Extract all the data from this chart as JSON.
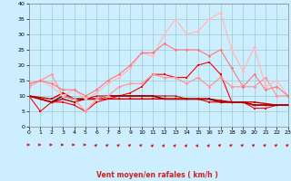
{
  "xlabel": "Vent moyen/en rafales ( km/h )",
  "xlim": [
    0,
    23
  ],
  "ylim": [
    0,
    40
  ],
  "yticks": [
    0,
    5,
    10,
    15,
    20,
    25,
    30,
    35,
    40
  ],
  "xticks": [
    0,
    1,
    2,
    3,
    4,
    5,
    6,
    7,
    8,
    9,
    10,
    11,
    12,
    13,
    14,
    15,
    16,
    17,
    18,
    19,
    20,
    21,
    22,
    23
  ],
  "bg_color": "#cceeff",
  "grid_color": "#99cccc",
  "lines": [
    {
      "y": [
        10,
        5,
        8,
        8,
        7,
        5,
        8,
        9,
        10,
        11,
        13,
        17,
        17,
        16,
        16,
        20,
        21,
        17,
        8,
        8,
        6,
        6,
        7,
        7
      ],
      "color": "#ff0000",
      "lw": 0.8,
      "marker": "s",
      "ms": 1.8
    },
    {
      "y": [
        10,
        9.5,
        9,
        11,
        9,
        9,
        9,
        9,
        9,
        9,
        9,
        9,
        9,
        9,
        9,
        9,
        9,
        8.5,
        8,
        8,
        8,
        7.5,
        7,
        7
      ],
      "color": "#cc0000",
      "lw": 1.0,
      "marker": "s",
      "ms": 1.5
    },
    {
      "y": [
        10,
        9,
        8,
        10,
        9,
        9,
        9,
        10,
        10,
        10,
        10,
        10,
        9,
        9,
        9,
        9,
        9,
        8,
        8,
        8,
        7,
        7,
        7,
        7
      ],
      "color": "#880000",
      "lw": 1.2,
      "marker": "s",
      "ms": 1.5
    },
    {
      "y": [
        10,
        9,
        8,
        9,
        8,
        9,
        9,
        9,
        9,
        9,
        9,
        9,
        9,
        9,
        9,
        9,
        8,
        8,
        8,
        8,
        7,
        7,
        7,
        7
      ],
      "color": "#dd0000",
      "lw": 0.8,
      "marker": "s",
      "ms": 1.5
    },
    {
      "y": [
        10,
        9,
        8,
        9,
        8,
        9,
        10,
        10,
        10,
        10,
        10,
        10,
        10,
        10,
        9,
        9,
        9,
        8,
        8,
        8,
        7,
        7,
        7,
        7
      ],
      "color": "#aa0000",
      "lw": 0.7,
      "marker": "s",
      "ms": 1.2
    },
    {
      "y": [
        13,
        15,
        17,
        10,
        9,
        5,
        9,
        10,
        13,
        14,
        14,
        17,
        16,
        16,
        14,
        16,
        13,
        16,
        13,
        13,
        13,
        16,
        10,
        10
      ],
      "color": "#ff9999",
      "lw": 0.9,
      "marker": "D",
      "ms": 2.0
    },
    {
      "y": [
        14,
        15,
        13,
        10,
        12,
        9,
        11,
        14,
        16,
        19,
        24,
        23,
        30,
        35,
        30,
        31,
        35,
        37,
        25,
        18,
        26,
        13,
        15,
        10
      ],
      "color": "#ffbbbb",
      "lw": 0.9,
      "marker": "D",
      "ms": 2.0
    },
    {
      "y": [
        14,
        15,
        14,
        12,
        12,
        10,
        12,
        15,
        17,
        20,
        24,
        24,
        27,
        25,
        25,
        25,
        23,
        25,
        19,
        13,
        17,
        12,
        13,
        10
      ],
      "color": "#ff7777",
      "lw": 0.8,
      "marker": "D",
      "ms": 1.8
    }
  ],
  "arrow_color": "#cc2222",
  "wind_dirs": [
    3,
    3,
    3,
    3,
    3,
    3,
    5,
    5,
    5,
    5,
    5,
    6,
    6,
    6,
    6,
    6,
    6,
    5,
    5,
    5,
    5,
    5,
    5,
    5
  ]
}
